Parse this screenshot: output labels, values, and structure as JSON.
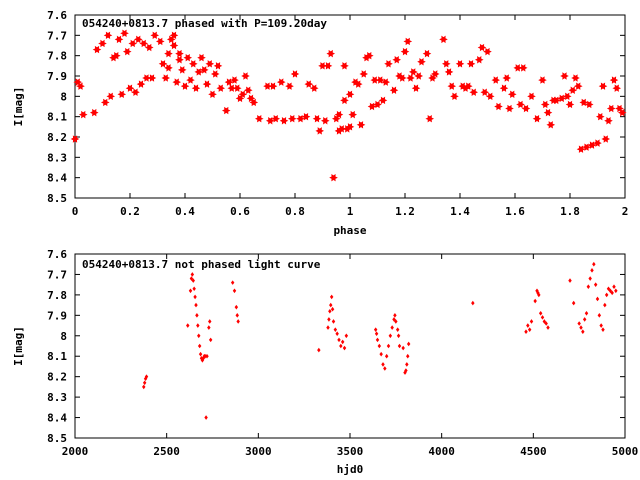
{
  "chart_data": [
    {
      "type": "scatter",
      "title": "054240+0813.7 phased with P=109.20day",
      "xlabel": "phase",
      "ylabel": "I[mag]",
      "xlim": [
        0,
        2
      ],
      "ylim": [
        8.5,
        7.6
      ],
      "y_inverted": true,
      "x_ticks": [
        "0",
        "0.2",
        "0.4",
        "0.6",
        "0.8",
        "1",
        "1.2",
        "1.4",
        "1.6",
        "1.8",
        "2"
      ],
      "y_ticks": [
        "7.6",
        "7.7",
        "7.8",
        "7.9",
        "8",
        "8.1",
        "8.2",
        "8.3",
        "8.4",
        "8.5"
      ],
      "grid": false,
      "marker_color": "#ff0000",
      "marker": "star",
      "points": [
        [
          0.0,
          8.21
        ],
        [
          0.01,
          7.93
        ],
        [
          0.02,
          7.95
        ],
        [
          0.03,
          8.09
        ],
        [
          0.07,
          8.08
        ],
        [
          0.08,
          7.77
        ],
        [
          0.1,
          7.74
        ],
        [
          0.11,
          8.03
        ],
        [
          0.12,
          7.7
        ],
        [
          0.13,
          8.0
        ],
        [
          0.14,
          7.81
        ],
        [
          0.15,
          7.8
        ],
        [
          0.16,
          7.72
        ],
        [
          0.17,
          7.99
        ],
        [
          0.18,
          7.69
        ],
        [
          0.19,
          7.78
        ],
        [
          0.2,
          7.96
        ],
        [
          0.21,
          7.74
        ],
        [
          0.22,
          7.98
        ],
        [
          0.23,
          7.72
        ],
        [
          0.24,
          7.94
        ],
        [
          0.25,
          7.74
        ],
        [
          0.26,
          7.91
        ],
        [
          0.27,
          7.76
        ],
        [
          0.28,
          7.91
        ],
        [
          0.29,
          7.7
        ],
        [
          0.31,
          7.73
        ],
        [
          0.32,
          7.84
        ],
        [
          0.33,
          7.91
        ],
        [
          0.34,
          7.79
        ],
        [
          0.34,
          7.86
        ],
        [
          0.35,
          7.72
        ],
        [
          0.36,
          7.7
        ],
        [
          0.36,
          7.75
        ],
        [
          0.37,
          7.93
        ],
        [
          0.38,
          7.79
        ],
        [
          0.38,
          7.82
        ],
        [
          0.39,
          7.87
        ],
        [
          0.4,
          7.95
        ],
        [
          0.41,
          7.81
        ],
        [
          0.42,
          7.92
        ],
        [
          0.43,
          7.84
        ],
        [
          0.44,
          7.96
        ],
        [
          0.45,
          7.88
        ],
        [
          0.46,
          7.81
        ],
        [
          0.47,
          7.87
        ],
        [
          0.48,
          7.94
        ],
        [
          0.49,
          7.84
        ],
        [
          0.5,
          7.99
        ],
        [
          0.51,
          7.89
        ],
        [
          0.52,
          7.85
        ],
        [
          0.53,
          7.96
        ],
        [
          0.55,
          8.07
        ],
        [
          0.56,
          7.93
        ],
        [
          0.57,
          7.96
        ],
        [
          0.58,
          7.92
        ],
        [
          0.59,
          7.96
        ],
        [
          0.6,
          8.01
        ],
        [
          0.61,
          7.99
        ],
        [
          0.62,
          7.9
        ],
        [
          0.63,
          7.97
        ],
        [
          0.64,
          8.01
        ],
        [
          0.65,
          8.03
        ],
        [
          0.67,
          8.11
        ],
        [
          0.7,
          7.95
        ],
        [
          0.71,
          8.12
        ],
        [
          0.72,
          7.95
        ],
        [
          0.73,
          8.11
        ],
        [
          0.75,
          7.93
        ],
        [
          0.76,
          8.12
        ],
        [
          0.78,
          7.95
        ],
        [
          0.79,
          8.11
        ],
        [
          0.8,
          7.89
        ],
        [
          0.82,
          8.11
        ],
        [
          0.84,
          8.1
        ],
        [
          0.85,
          7.94
        ],
        [
          0.87,
          7.96
        ],
        [
          0.88,
          8.11
        ],
        [
          0.89,
          8.17
        ],
        [
          0.9,
          7.85
        ],
        [
          0.91,
          8.12
        ],
        [
          0.92,
          7.85
        ],
        [
          0.93,
          7.79
        ],
        [
          0.94,
          8.4
        ],
        [
          0.95,
          8.11
        ],
        [
          0.96,
          8.17
        ],
        [
          0.96,
          8.09
        ],
        [
          0.97,
          8.16
        ],
        [
          0.98,
          7.85
        ],
        [
          0.98,
          8.02
        ],
        [
          0.99,
          8.16
        ],
        [
          1.0,
          8.15
        ],
        [
          1.0,
          7.99
        ],
        [
          1.01,
          8.09
        ],
        [
          1.02,
          7.93
        ],
        [
          1.03,
          7.94
        ],
        [
          1.04,
          8.14
        ],
        [
          1.05,
          7.89
        ],
        [
          1.06,
          7.81
        ],
        [
          1.07,
          7.8
        ],
        [
          1.08,
          8.05
        ],
        [
          1.09,
          7.92
        ],
        [
          1.1,
          8.04
        ],
        [
          1.11,
          7.92
        ],
        [
          1.12,
          8.02
        ],
        [
          1.13,
          7.93
        ],
        [
          1.14,
          7.84
        ],
        [
          1.16,
          7.97
        ],
        [
          1.17,
          7.82
        ],
        [
          1.18,
          7.9
        ],
        [
          1.19,
          7.91
        ],
        [
          1.2,
          7.78
        ],
        [
          1.21,
          7.73
        ],
        [
          1.22,
          7.91
        ],
        [
          1.23,
          7.88
        ],
        [
          1.24,
          7.96
        ],
        [
          1.25,
          7.9
        ],
        [
          1.26,
          7.83
        ],
        [
          1.28,
          7.79
        ],
        [
          1.29,
          8.11
        ],
        [
          1.3,
          7.91
        ],
        [
          1.31,
          7.89
        ],
        [
          1.34,
          7.72
        ],
        [
          1.35,
          7.84
        ],
        [
          1.36,
          7.88
        ],
        [
          1.37,
          7.95
        ],
        [
          1.38,
          8.0
        ],
        [
          1.4,
          7.84
        ],
        [
          1.41,
          7.95
        ],
        [
          1.42,
          7.96
        ],
        [
          1.43,
          7.95
        ],
        [
          1.44,
          7.84
        ],
        [
          1.45,
          7.98
        ],
        [
          1.47,
          7.82
        ],
        [
          1.48,
          7.76
        ],
        [
          1.49,
          7.98
        ],
        [
          1.5,
          7.78
        ],
        [
          1.51,
          8.0
        ],
        [
          1.53,
          7.92
        ],
        [
          1.54,
          8.05
        ],
        [
          1.56,
          7.96
        ],
        [
          1.57,
          7.91
        ],
        [
          1.58,
          8.06
        ],
        [
          1.59,
          7.99
        ],
        [
          1.61,
          7.86
        ],
        [
          1.62,
          8.04
        ],
        [
          1.63,
          7.86
        ],
        [
          1.64,
          8.06
        ],
        [
          1.66,
          8.0
        ],
        [
          1.68,
          8.11
        ],
        [
          1.7,
          7.92
        ],
        [
          1.71,
          8.04
        ],
        [
          1.72,
          8.08
        ],
        [
          1.73,
          8.14
        ],
        [
          1.74,
          8.02
        ],
        [
          1.75,
          8.02
        ],
        [
          1.77,
          8.01
        ],
        [
          1.78,
          7.9
        ],
        [
          1.79,
          8.0
        ],
        [
          1.8,
          8.04
        ],
        [
          1.81,
          7.97
        ],
        [
          1.82,
          7.91
        ],
        [
          1.83,
          7.95
        ],
        [
          1.84,
          8.26
        ],
        [
          1.85,
          8.03
        ],
        [
          1.86,
          8.25
        ],
        [
          1.87,
          8.04
        ],
        [
          1.88,
          8.24
        ],
        [
          1.9,
          8.23
        ],
        [
          1.91,
          8.1
        ],
        [
          1.92,
          7.95
        ],
        [
          1.93,
          8.21
        ],
        [
          1.94,
          8.12
        ],
        [
          1.95,
          8.06
        ],
        [
          1.96,
          7.92
        ],
        [
          1.97,
          7.96
        ],
        [
          1.98,
          8.06
        ],
        [
          1.99,
          8.08
        ]
      ]
    },
    {
      "type": "scatter",
      "title": "054240+0813.7 not phased light curve",
      "xlabel": "hjd0",
      "ylabel": "I[mag]",
      "xlim": [
        2000,
        5000
      ],
      "ylim": [
        8.5,
        7.6
      ],
      "y_inverted": true,
      "x_ticks": [
        "2000",
        "2500",
        "3000",
        "3500",
        "4000",
        "4500",
        "5000"
      ],
      "y_ticks": [
        "7.6",
        "7.7",
        "7.8",
        "7.9",
        "8",
        "8.1",
        "8.2",
        "8.3",
        "8.4",
        "8.5"
      ],
      "grid": false,
      "marker_color": "#ff0000",
      "marker": "diamond",
      "points": [
        [
          2375,
          8.25
        ],
        [
          2380,
          8.23
        ],
        [
          2385,
          8.21
        ],
        [
          2390,
          8.2
        ],
        [
          2615,
          7.95
        ],
        [
          2630,
          7.78
        ],
        [
          2635,
          7.72
        ],
        [
          2640,
          7.7
        ],
        [
          2645,
          7.73
        ],
        [
          2650,
          7.77
        ],
        [
          2655,
          7.81
        ],
        [
          2660,
          7.85
        ],
        [
          2665,
          7.9
        ],
        [
          2670,
          7.95
        ],
        [
          2675,
          8.0
        ],
        [
          2680,
          8.05
        ],
        [
          2685,
          8.09
        ],
        [
          2690,
          8.11
        ],
        [
          2695,
          8.12
        ],
        [
          2700,
          8.11
        ],
        [
          2705,
          8.1
        ],
        [
          2710,
          8.1
        ],
        [
          2715,
          8.4
        ],
        [
          2720,
          8.1
        ],
        [
          2730,
          7.96
        ],
        [
          2735,
          7.93
        ],
        [
          2740,
          8.02
        ],
        [
          2860,
          7.74
        ],
        [
          2870,
          7.78
        ],
        [
          2880,
          7.86
        ],
        [
          2885,
          7.9
        ],
        [
          2890,
          7.93
        ],
        [
          3330,
          8.07
        ],
        [
          3380,
          7.96
        ],
        [
          3385,
          7.92
        ],
        [
          3390,
          7.88
        ],
        [
          3395,
          7.85
        ],
        [
          3400,
          7.81
        ],
        [
          3405,
          7.87
        ],
        [
          3410,
          7.93
        ],
        [
          3420,
          7.97
        ],
        [
          3430,
          7.99
        ],
        [
          3440,
          8.02
        ],
        [
          3450,
          8.05
        ],
        [
          3460,
          8.03
        ],
        [
          3470,
          8.06
        ],
        [
          3480,
          8.0
        ],
        [
          3640,
          7.97
        ],
        [
          3645,
          7.99
        ],
        [
          3650,
          8.02
        ],
        [
          3660,
          8.05
        ],
        [
          3670,
          8.09
        ],
        [
          3680,
          8.14
        ],
        [
          3690,
          8.16
        ],
        [
          3700,
          8.1
        ],
        [
          3710,
          8.05
        ],
        [
          3720,
          8.0
        ],
        [
          3730,
          7.96
        ],
        [
          3740,
          7.92
        ],
        [
          3745,
          7.9
        ],
        [
          3750,
          7.93
        ],
        [
          3760,
          7.97
        ],
        [
          3765,
          8.0
        ],
        [
          3770,
          8.05
        ],
        [
          3790,
          8.06
        ],
        [
          3800,
          8.18
        ],
        [
          3805,
          8.17
        ],
        [
          3810,
          8.14
        ],
        [
          3815,
          8.1
        ],
        [
          3820,
          8.04
        ],
        [
          4170,
          7.84
        ],
        [
          4460,
          7.98
        ],
        [
          4470,
          7.95
        ],
        [
          4480,
          7.97
        ],
        [
          4490,
          7.93
        ],
        [
          4510,
          7.83
        ],
        [
          4520,
          7.78
        ],
        [
          4525,
          7.79
        ],
        [
          4530,
          7.8
        ],
        [
          4540,
          7.89
        ],
        [
          4550,
          7.91
        ],
        [
          4560,
          7.93
        ],
        [
          4570,
          7.94
        ],
        [
          4580,
          7.96
        ],
        [
          4700,
          7.73
        ],
        [
          4720,
          7.84
        ],
        [
          4750,
          7.94
        ],
        [
          4760,
          7.96
        ],
        [
          4770,
          7.98
        ],
        [
          4780,
          7.92
        ],
        [
          4790,
          7.89
        ],
        [
          4800,
          7.76
        ],
        [
          4810,
          7.72
        ],
        [
          4820,
          7.68
        ],
        [
          4830,
          7.65
        ],
        [
          4840,
          7.75
        ],
        [
          4850,
          7.82
        ],
        [
          4860,
          7.9
        ],
        [
          4870,
          7.95
        ],
        [
          4880,
          7.97
        ],
        [
          4890,
          7.85
        ],
        [
          4900,
          7.8
        ],
        [
          4910,
          7.77
        ],
        [
          4920,
          7.78
        ],
        [
          4930,
          7.79
        ],
        [
          4940,
          7.76
        ],
        [
          4950,
          7.78
        ]
      ]
    }
  ]
}
